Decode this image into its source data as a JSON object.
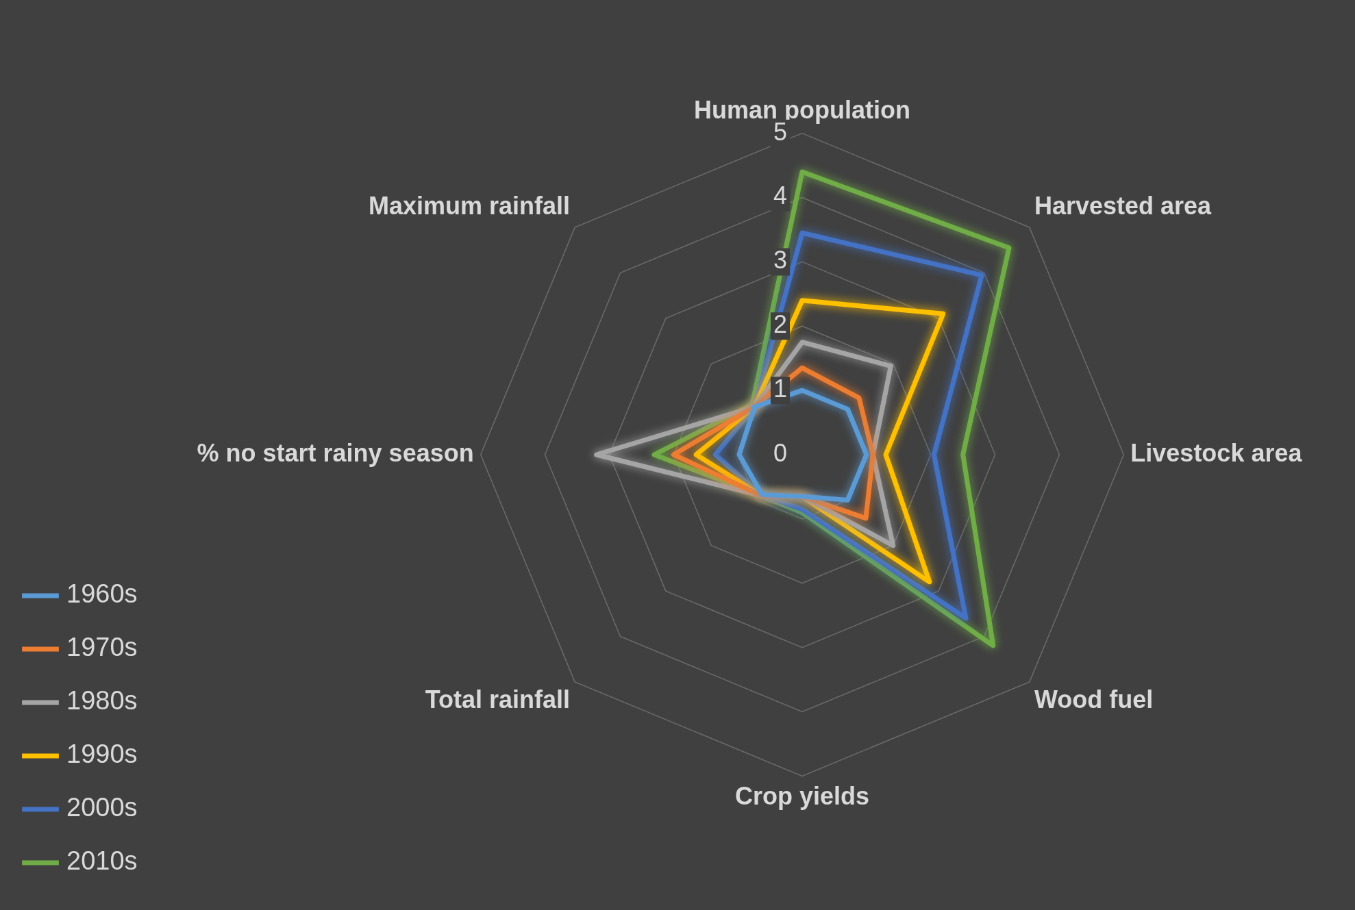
{
  "chart_data": {
    "type": "radar",
    "categories": [
      "Human population",
      "Harvested area",
      "Livestock area",
      "Wood fuel",
      "Crop yields",
      "Total rainfall",
      "% no start rainy season",
      "Maximum rainfall"
    ],
    "ylim": [
      0,
      5
    ],
    "yticks": [
      0,
      1,
      2,
      3,
      4,
      5
    ],
    "grid": true,
    "legend": "bottom left",
    "marker": "none",
    "series": [
      {
        "name": "1960s",
        "color": "#5b9bd5",
        "values": [
          1.0,
          1.0,
          1.0,
          1.0,
          0.65,
          0.88,
          0.98,
          1.05
        ]
      },
      {
        "name": "1970s",
        "color": "#ed7d31",
        "values": [
          1.35,
          1.25,
          1.1,
          1.4,
          0.65,
          0.9,
          2.0,
          1.05
        ]
      },
      {
        "name": "1980s",
        "color": "#a5a5a5",
        "values": [
          1.75,
          1.95,
          1.1,
          2.0,
          0.65,
          0.9,
          3.2,
          1.05
        ]
      },
      {
        "name": "1990s",
        "color": "#ffc000",
        "values": [
          2.4,
          3.1,
          1.3,
          2.8,
          0.65,
          0.9,
          1.65,
          1.05
        ]
      },
      {
        "name": "2000s",
        "color": "#4472c4",
        "values": [
          3.45,
          3.95,
          2.05,
          3.6,
          0.85,
          0.9,
          1.35,
          1.05
        ]
      },
      {
        "name": "2010s",
        "color": "#70ad47",
        "values": [
          4.4,
          4.55,
          2.5,
          4.2,
          0.9,
          0.9,
          2.3,
          1.1
        ]
      }
    ]
  }
}
